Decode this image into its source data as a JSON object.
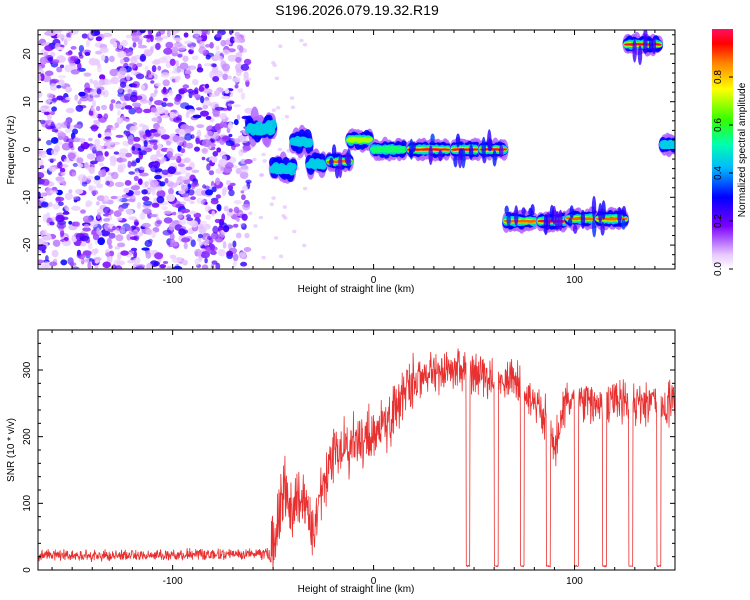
{
  "figure": {
    "title": "S196.2026.079.19.32.R19"
  },
  "chart_data": [
    {
      "type": "heatmap",
      "title": "S196.2026.079.19.32.R19",
      "xlabel": "Height of straight line (km)",
      "ylabel": "Frequency (Hz)",
      "xlim": [
        -167,
        150
      ],
      "ylim": [
        -25,
        25
      ],
      "x_ticks": [
        -100,
        0,
        100
      ],
      "y_ticks": [
        -20,
        -10,
        0,
        10,
        20
      ],
      "colorbar": {
        "label": "Normalized spectral amplitude",
        "range": [
          0,
          1
        ],
        "ticks": [
          0.0,
          0.2,
          0.4,
          0.6,
          0.8
        ]
      },
      "noise_region": {
        "x_range": [
          -167,
          -62
        ],
        "y_range": [
          -25,
          25
        ],
        "level": 0.15
      },
      "ridge_segments": [
        {
          "x_range": [
            -62,
            -50
          ],
          "y": 4.5,
          "y_jitter": 3,
          "peak": 0.4
        },
        {
          "x_range": [
            -50,
            -40
          ],
          "y": -4,
          "y_jitter": 2,
          "peak": 0.4
        },
        {
          "x_range": [
            -40,
            -32
          ],
          "y": 1.5,
          "y_jitter": 2,
          "peak": 0.45
        },
        {
          "x_range": [
            -32,
            -25
          ],
          "y": -3,
          "y_jitter": 1.5,
          "peak": 0.5
        },
        {
          "x_range": [
            -22,
            -12
          ],
          "y": -2.5,
          "y_jitter": 0.5,
          "peak": 0.9
        },
        {
          "x_range": [
            -12,
            -2
          ],
          "y": 2,
          "y_jitter": 1,
          "peak": 0.7
        },
        {
          "x_range": [
            0,
            15
          ],
          "y": 0,
          "y_jitter": 0.5,
          "peak": 0.6
        },
        {
          "x_range": [
            18,
            37
          ],
          "y": 0,
          "y_jitter": 0.3,
          "peak": 1.0
        },
        {
          "x_range": [
            40,
            52
          ],
          "y": 0,
          "y_jitter": 0.3,
          "peak": 0.95
        },
        {
          "x_range": [
            54,
            65
          ],
          "y": 0,
          "y_jitter": 0.3,
          "peak": 0.95
        },
        {
          "x_range": [
            66,
            80
          ],
          "y": -15,
          "y_jitter": 0.5,
          "peak": 0.85
        },
        {
          "x_range": [
            83,
            95
          ],
          "y": -15,
          "y_jitter": 0.5,
          "peak": 0.95
        },
        {
          "x_range": [
            97,
            110
          ],
          "y": -14.5,
          "y_jitter": 0.5,
          "peak": 0.9
        },
        {
          "x_range": [
            112,
            125
          ],
          "y": -14.5,
          "y_jitter": 0.5,
          "peak": 0.85
        },
        {
          "x_range": [
            126,
            142
          ],
          "y": 22,
          "y_jitter": 0.5,
          "peak": 0.95
        },
        {
          "x_range": [
            144,
            150
          ],
          "y": 1,
          "y_jitter": 0.3,
          "peak": 0.5
        }
      ]
    },
    {
      "type": "line",
      "xlabel": "Height of straight line (km)",
      "ylabel": "SNR (10 * v/v)",
      "xlim": [
        -167,
        150
      ],
      "ylim": [
        0,
        360
      ],
      "x_ticks": [
        -100,
        0,
        100
      ],
      "y_ticks": [
        0,
        100,
        200,
        300
      ],
      "color": "#e83030",
      "trend": [
        [
          -167,
          22
        ],
        [
          -120,
          22
        ],
        [
          -70,
          24
        ],
        [
          -52,
          25
        ],
        [
          -48,
          60
        ],
        [
          -44,
          130
        ],
        [
          -40,
          90
        ],
        [
          -36,
          110
        ],
        [
          -30,
          60
        ],
        [
          -25,
          130
        ],
        [
          -20,
          180
        ],
        [
          -10,
          190
        ],
        [
          0,
          200
        ],
        [
          10,
          240
        ],
        [
          20,
          280
        ],
        [
          30,
          300
        ],
        [
          40,
          300
        ],
        [
          50,
          295
        ],
        [
          60,
          290
        ],
        [
          70,
          285
        ],
        [
          78,
          260
        ],
        [
          85,
          230
        ],
        [
          90,
          180
        ],
        [
          95,
          250
        ],
        [
          100,
          260
        ],
        [
          110,
          250
        ],
        [
          120,
          255
        ],
        [
          130,
          250
        ],
        [
          140,
          250
        ],
        [
          150,
          250
        ]
      ],
      "dropouts": [
        {
          "x_range": [
            46,
            48
          ],
          "y": 5
        },
        {
          "x_range": [
            60,
            62
          ],
          "y": 5
        },
        {
          "x_range": [
            73,
            75
          ],
          "y": 5
        },
        {
          "x_range": [
            86,
            88
          ],
          "y": 5
        },
        {
          "x_range": [
            100,
            102
          ],
          "y": 5
        },
        {
          "x_range": [
            114,
            116
          ],
          "y": 5
        },
        {
          "x_range": [
            127,
            129
          ],
          "y": 5
        },
        {
          "x_range": [
            141,
            143
          ],
          "y": 5
        }
      ]
    }
  ]
}
